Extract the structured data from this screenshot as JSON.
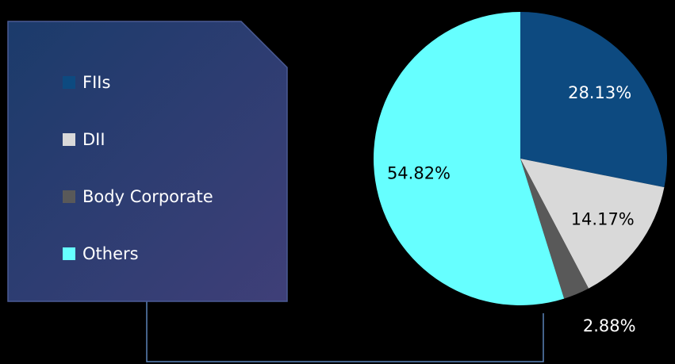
{
  "chart_data": {
    "type": "pie",
    "categories": [
      "FIIs",
      "DII",
      "Body Corporate",
      "Others"
    ],
    "values": [
      28.13,
      14.17,
      2.88,
      54.82
    ],
    "value_labels": [
      "28.13%",
      "14.17%",
      "2.88%",
      "54.82%"
    ],
    "colors": [
      "#0d4a80",
      "#d9d9d9",
      "#595959",
      "#66ffff"
    ],
    "legend": "left"
  }
}
